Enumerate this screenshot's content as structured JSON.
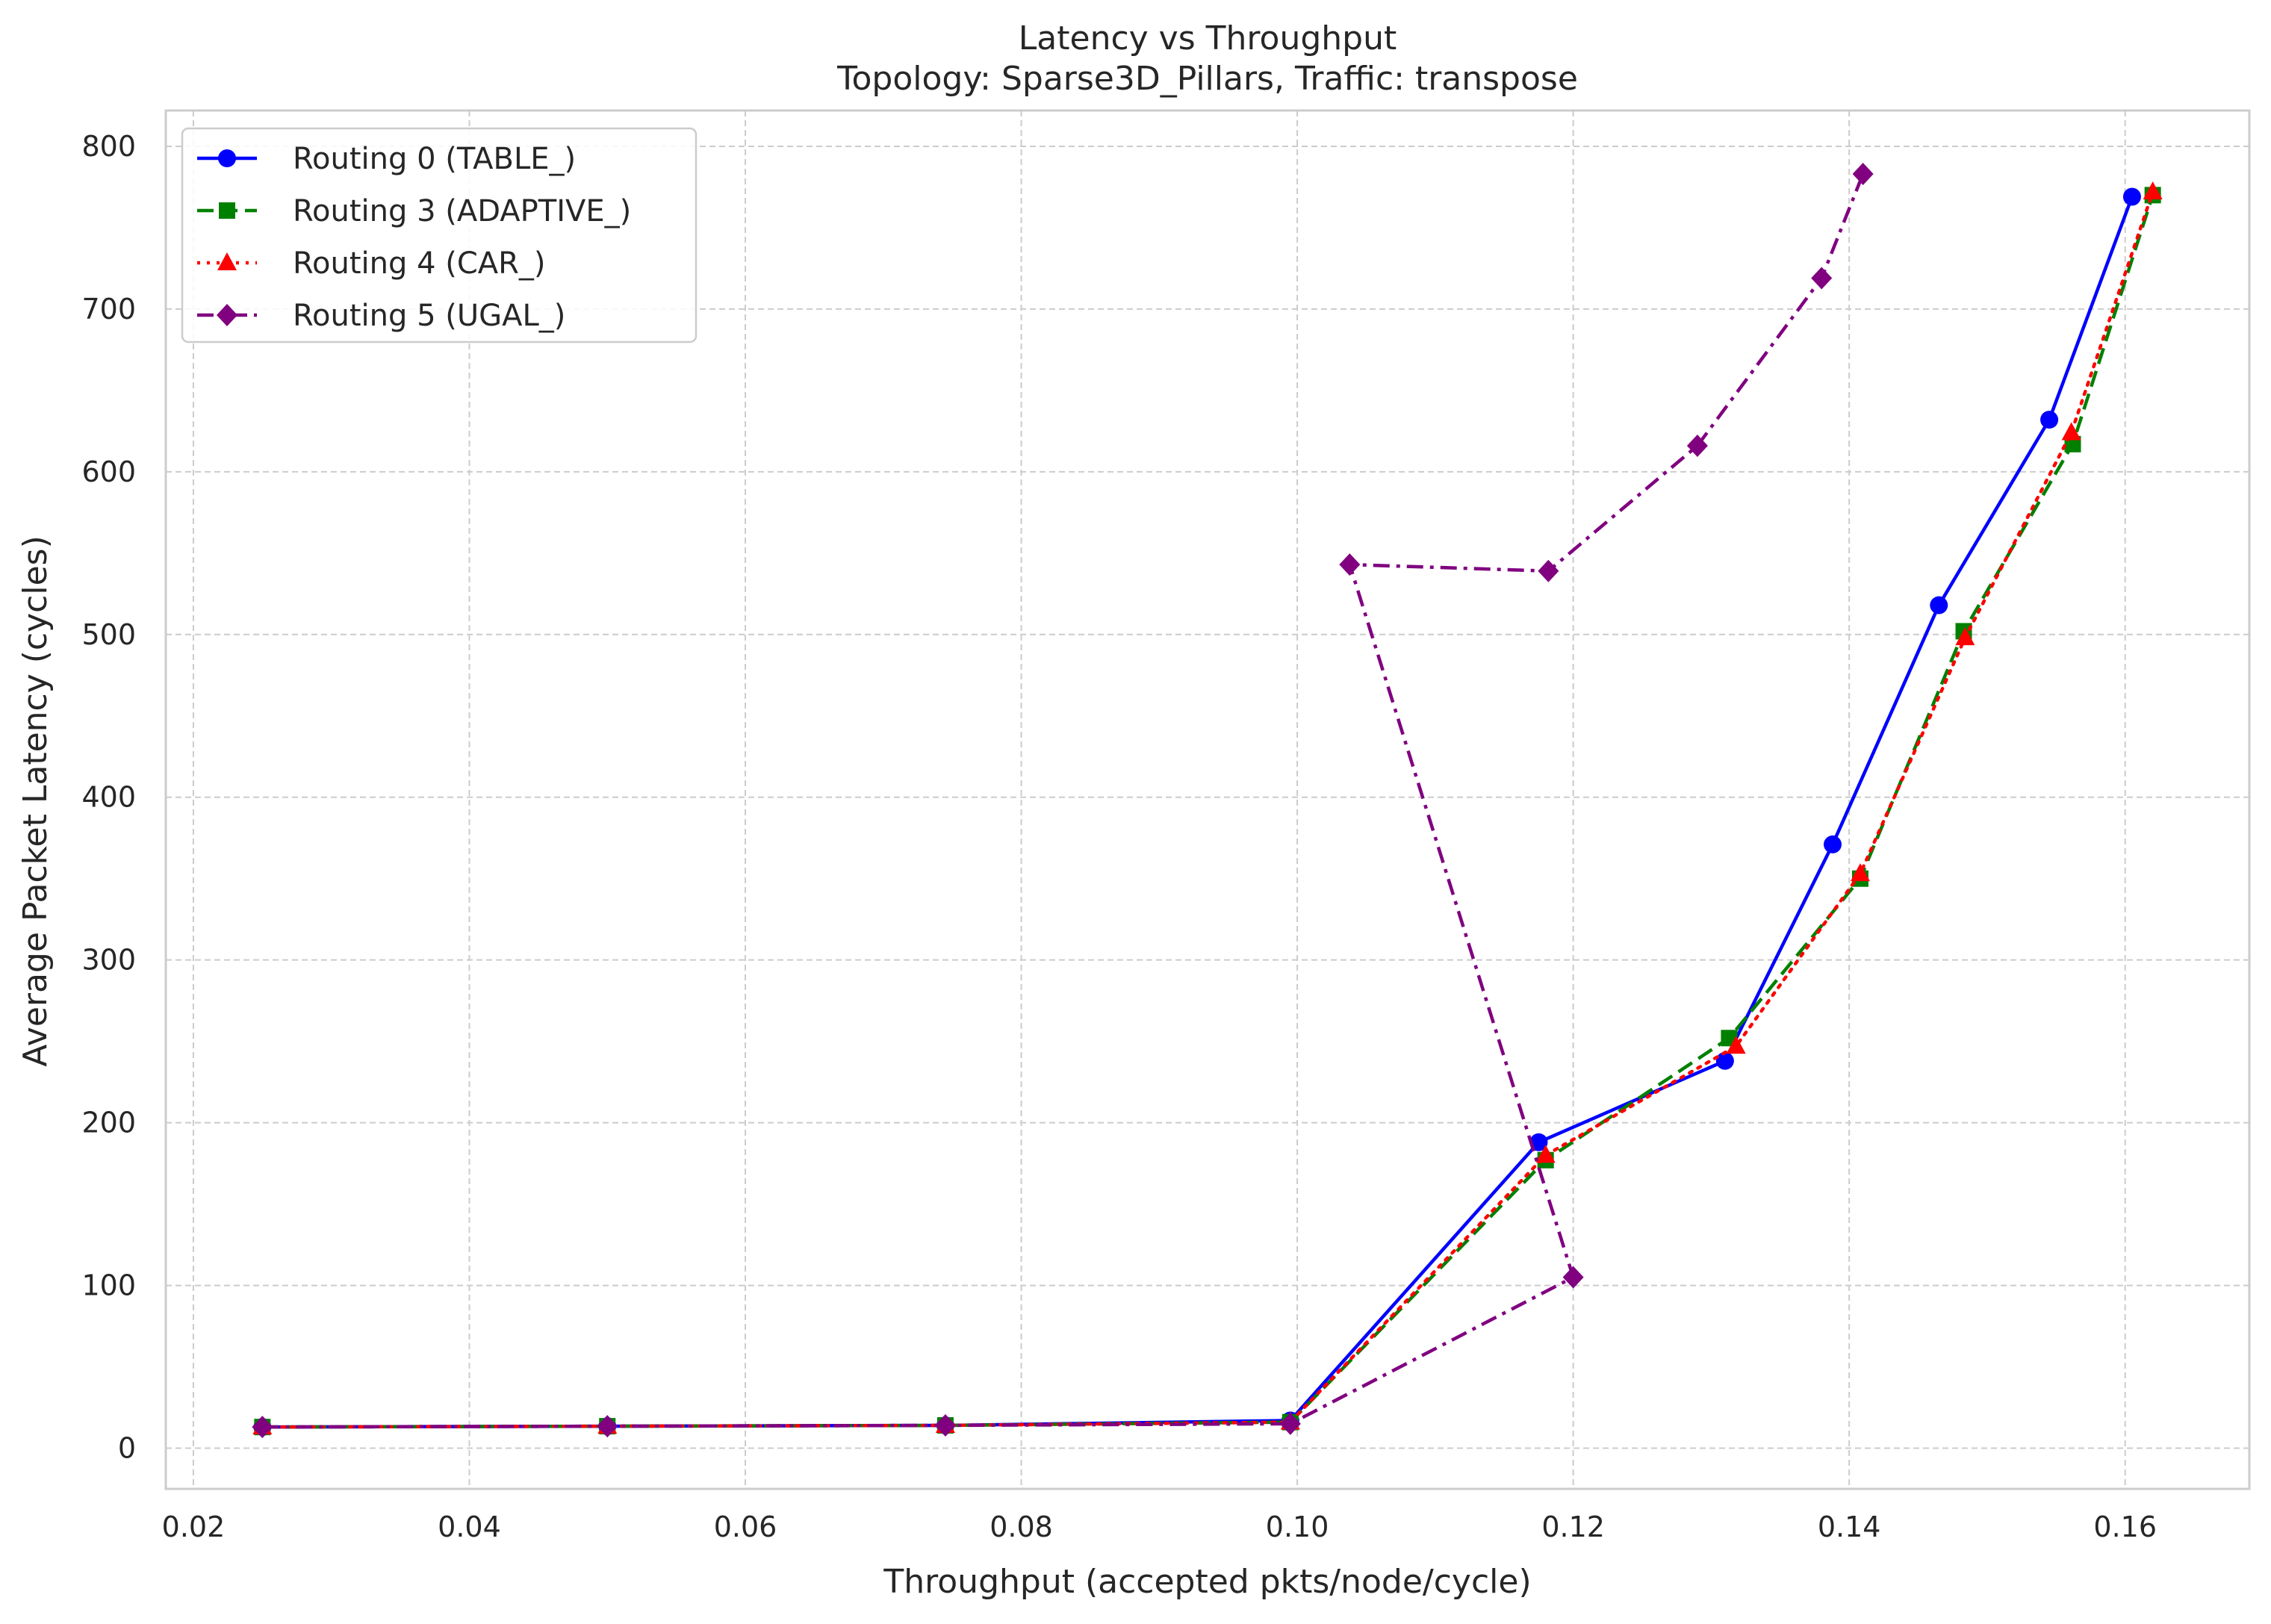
{
  "chart_data": {
    "type": "line",
    "title": "Latency vs Throughput",
    "subtitle": "Topology: Sparse3D_Pillars, Traffic: transpose",
    "xlabel": "Throughput (accepted pkts/node/cycle)",
    "ylabel": "Average Packet Latency (cycles)",
    "xlim": [
      0.018,
      0.169
    ],
    "ylim": [
      -25,
      822
    ],
    "xticks": [
      0.02,
      0.04,
      0.06,
      0.08,
      0.1,
      0.12,
      0.14,
      0.16
    ],
    "xtick_labels": [
      "0.02",
      "0.04",
      "0.06",
      "0.08",
      "0.10",
      "0.12",
      "0.14",
      "0.16"
    ],
    "yticks": [
      0,
      100,
      200,
      300,
      400,
      500,
      600,
      700,
      800
    ],
    "ytick_labels": [
      "0",
      "100",
      "200",
      "300",
      "400",
      "500",
      "600",
      "700",
      "800"
    ],
    "grid": true,
    "legend_position": "top-left",
    "series": [
      {
        "name": "Routing 0 (TABLE_)",
        "color": "#0000ff",
        "marker": "circle",
        "line_style": "solid",
        "points": [
          [
            0.025,
            13
          ],
          [
            0.05,
            13.5
          ],
          [
            0.0745,
            14
          ],
          [
            0.0995,
            17
          ],
          [
            0.1175,
            188
          ],
          [
            0.131,
            238
          ],
          [
            0.1388,
            371
          ],
          [
            0.1465,
            518
          ],
          [
            0.1545,
            632
          ],
          [
            0.1605,
            769
          ]
        ]
      },
      {
        "name": "Routing 3 (ADAPTIVE_)",
        "color": "#008000",
        "marker": "square",
        "line_style": "dashed",
        "points": [
          [
            0.025,
            13
          ],
          [
            0.05,
            13.5
          ],
          [
            0.0745,
            14
          ],
          [
            0.0995,
            16
          ],
          [
            0.118,
            177
          ],
          [
            0.1313,
            252
          ],
          [
            0.1408,
            350
          ],
          [
            0.1483,
            502
          ],
          [
            0.1562,
            617
          ],
          [
            0.162,
            770
          ]
        ]
      },
      {
        "name": "Routing 4 (CAR_)",
        "color": "#ff0000",
        "marker": "triangle",
        "line_style": "dotted",
        "points": [
          [
            0.025,
            13
          ],
          [
            0.05,
            13.5
          ],
          [
            0.0745,
            14
          ],
          [
            0.0995,
            16
          ],
          [
            0.118,
            180
          ],
          [
            0.1318,
            247
          ],
          [
            0.1408,
            353
          ],
          [
            0.1484,
            498
          ],
          [
            0.1561,
            624
          ],
          [
            0.162,
            772
          ]
        ]
      },
      {
        "name": "Routing 5 (UGAL_)",
        "color": "#800080",
        "marker": "diamond",
        "line_style": "dashdot",
        "points": [
          [
            0.025,
            13
          ],
          [
            0.05,
            13.5
          ],
          [
            0.0745,
            14
          ],
          [
            0.0995,
            15
          ],
          [
            0.12,
            105
          ],
          [
            0.1038,
            543
          ],
          [
            0.1182,
            539
          ],
          [
            0.129,
            616
          ],
          [
            0.138,
            719
          ],
          [
            0.141,
            783
          ]
        ]
      }
    ]
  }
}
